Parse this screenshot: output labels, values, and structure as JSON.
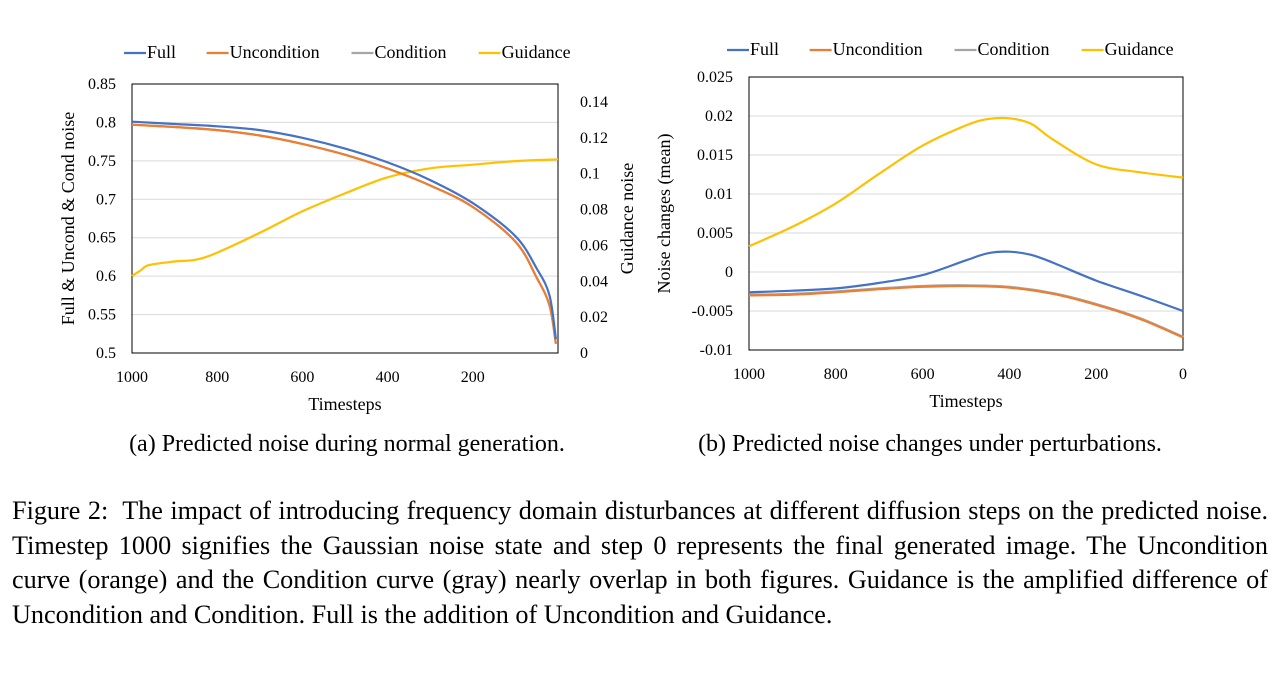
{
  "chart_data": [
    {
      "type": "line",
      "xlabel": "Timesteps",
      "ylabel": "Full & Uncond & Cond noise",
      "y2label": "Guidance noise",
      "caption": "(a) Predicted noise during normal generation.",
      "xlim": [
        1000,
        0
      ],
      "xticks": [
        1000,
        800,
        600,
        400,
        200
      ],
      "ylim": [
        0.5,
        0.85
      ],
      "yticks": [
        "0.5",
        "0.55",
        "0.6",
        "0.65",
        "0.7",
        "0.75",
        "0.8",
        "0.85"
      ],
      "y2lim": [
        0,
        0.15
      ],
      "y2ticks": [
        "0",
        "0.02",
        "0.04",
        "0.06",
        "0.08",
        "0.1",
        "0.12",
        "0.14"
      ],
      "grid": true,
      "legend": "top",
      "series": [
        {
          "name": "Full",
          "color": "#4472C4",
          "axis": "left",
          "x": [
            1000,
            900,
            800,
            700,
            600,
            500,
            400,
            300,
            200,
            100,
            50,
            20,
            5
          ],
          "y": [
            0.801,
            0.798,
            0.795,
            0.79,
            0.78,
            0.766,
            0.748,
            0.725,
            0.695,
            0.652,
            0.61,
            0.575,
            0.518
          ]
        },
        {
          "name": "Uncondition",
          "color": "#ED7D31",
          "axis": "left",
          "x": [
            1000,
            900,
            800,
            700,
            600,
            500,
            400,
            300,
            200,
            100,
            50,
            20,
            5
          ],
          "y": [
            0.797,
            0.794,
            0.79,
            0.783,
            0.772,
            0.758,
            0.74,
            0.718,
            0.69,
            0.645,
            0.598,
            0.562,
            0.512
          ]
        },
        {
          "name": "Condition",
          "color": "#A5A5A5",
          "axis": "left",
          "x": [
            1000,
            900,
            800,
            700,
            600,
            500,
            400,
            300,
            200,
            100,
            50,
            20,
            5
          ],
          "y": [
            0.797,
            0.794,
            0.79,
            0.783,
            0.772,
            0.758,
            0.74,
            0.718,
            0.69,
            0.645,
            0.598,
            0.562,
            0.512
          ]
        },
        {
          "name": "Guidance",
          "color": "#FFC000",
          "axis": "right",
          "x": [
            1000,
            980,
            960,
            900,
            850,
            800,
            700,
            600,
            500,
            400,
            300,
            200,
            100,
            0
          ],
          "y": [
            0.043,
            0.046,
            0.049,
            0.051,
            0.052,
            0.056,
            0.067,
            0.079,
            0.089,
            0.098,
            0.103,
            0.105,
            0.107,
            0.108
          ]
        }
      ]
    },
    {
      "type": "line",
      "xlabel": "Timesteps",
      "ylabel": "Noise  changes (mean)",
      "caption": "(b) Predicted noise changes under perturbations.",
      "xlim": [
        1000,
        0
      ],
      "xticks": [
        1000,
        800,
        600,
        400,
        200,
        0
      ],
      "ylim": [
        -0.01,
        0.025
      ],
      "yticks": [
        "-0.01",
        "-0.005",
        "0",
        "0.005",
        "0.01",
        "0.015",
        "0.02",
        "0.025"
      ],
      "grid": true,
      "legend": "top",
      "series": [
        {
          "name": "Full",
          "color": "#4472C4",
          "x": [
            1000,
            900,
            800,
            700,
            600,
            500,
            450,
            400,
            350,
            300,
            200,
            100,
            0
          ],
          "y": [
            -0.0026,
            -0.0024,
            -0.0021,
            -0.0014,
            -0.0004,
            0.0015,
            0.0024,
            0.0026,
            0.0022,
            0.0012,
            -0.0011,
            -0.003,
            -0.005
          ]
        },
        {
          "name": "Uncondition",
          "color": "#ED7D31",
          "x": [
            1000,
            900,
            800,
            700,
            600,
            500,
            400,
            300,
            200,
            100,
            0
          ],
          "y": [
            -0.003,
            -0.0029,
            -0.0026,
            -0.0022,
            -0.0019,
            -0.0018,
            -0.002,
            -0.0028,
            -0.0042,
            -0.006,
            -0.0084
          ]
        },
        {
          "name": "Condition",
          "color": "#A5A5A5",
          "x": [
            1000,
            900,
            800,
            700,
            600,
            500,
            400,
            300,
            200,
            100,
            0
          ],
          "y": [
            -0.0029,
            -0.0028,
            -0.0025,
            -0.0021,
            -0.0018,
            -0.0017,
            -0.0019,
            -0.0027,
            -0.0041,
            -0.0059,
            -0.0083
          ]
        },
        {
          "name": "Guidance",
          "color": "#FFC000",
          "x": [
            1000,
            900,
            800,
            700,
            600,
            500,
            450,
            400,
            350,
            300,
            200,
            100,
            0
          ],
          "y": [
            0.0033,
            0.0058,
            0.0088,
            0.0126,
            0.0162,
            0.0188,
            0.0196,
            0.0197,
            0.019,
            0.017,
            0.0138,
            0.0128,
            0.0121
          ]
        }
      ]
    }
  ],
  "figure_caption": {
    "label": "Figure 2:",
    "text": "The impact of introducing frequency domain disturbances at different diffusion steps on the predicted noise. Timestep 1000 signifies the Gaussian noise state and step 0 represents the final generated image. The Uncondition curve (orange) and the Condition curve (gray) nearly overlap in both figures. Guidance is the amplified difference of Uncondition and Condition. Full is the addition of Uncondition and Guidance."
  }
}
